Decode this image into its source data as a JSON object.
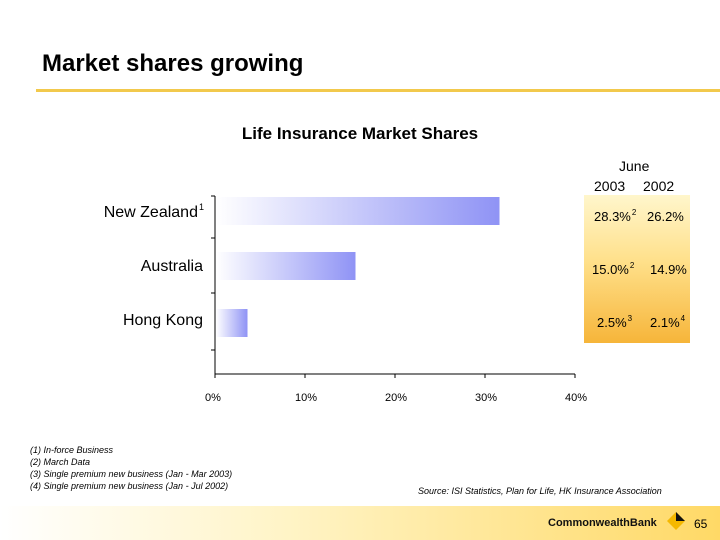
{
  "slide": {
    "title": "Market shares growing",
    "footnotes": [
      "(1) In-force Business",
      "(2) March Data",
      "(3) Single premium new business (Jan - Mar 2003)",
      "(4) Single premium new business (Jan - Jul 2002)"
    ],
    "source": "Source: ISI Statistics, Plan for Life, HK Insurance Association",
    "brand": "CommonwealthBank",
    "page_number": "65",
    "colors": {
      "title_rule": "#f2c94c",
      "bar_light": "#ffffff",
      "bar_dark": "#8f93f5",
      "panel_gold": "#f6b53a"
    }
  },
  "table": {
    "header_top": "June",
    "col_2003": "2003",
    "col_2002": "2002",
    "rows": [
      {
        "v2003": "28.3%",
        "sup2003": "2",
        "v2002": "26.2%",
        "sup2002": ""
      },
      {
        "v2003": "15.0%",
        "sup2003": "2",
        "v2002": "14.9%",
        "sup2002": ""
      },
      {
        "v2003": "2.5%",
        "sup2003": "3",
        "v2002": "2.1%",
        "sup2002": "4"
      }
    ]
  },
  "chart_data": {
    "type": "bar",
    "orientation": "horizontal",
    "title": "Life Insurance Market Shares",
    "categories": [
      "New Zealand",
      "Australia",
      "Hong Kong"
    ],
    "category_sups": [
      "1",
      "",
      ""
    ],
    "values": [
      31.5,
      15.5,
      3.5
    ],
    "xlim": [
      0,
      40
    ],
    "x_ticks": [
      0,
      10,
      20,
      30,
      40
    ],
    "x_tick_labels": [
      "0%",
      "10%",
      "20%",
      "30%",
      "40%"
    ],
    "xlabel": "",
    "ylabel": "",
    "grid": false
  }
}
